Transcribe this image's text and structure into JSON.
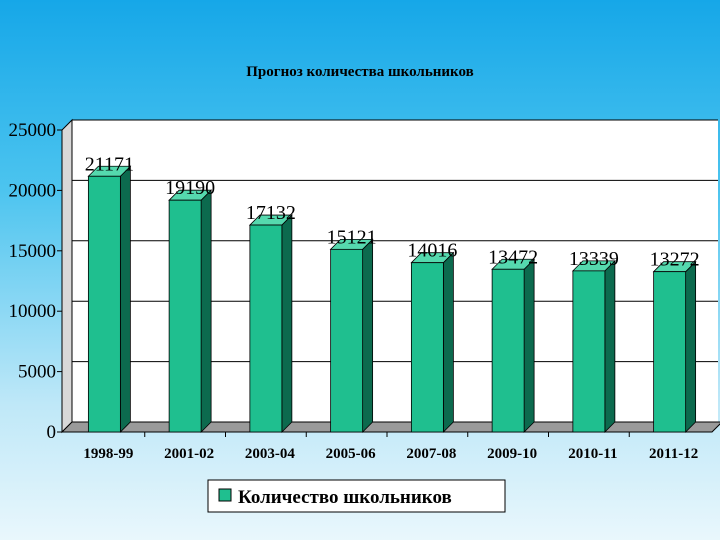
{
  "chart_data": {
    "type": "bar",
    "title": "Прогноз количества школьников",
    "categories": [
      "1998-99",
      "2001-02",
      "2003-04",
      "2005-06",
      "2007-08",
      "2009-10",
      "2010-11",
      "2011-12"
    ],
    "series": [
      {
        "name": "Количество школьников",
        "values": [
          21171,
          19190,
          17132,
          15121,
          14016,
          13472,
          13339,
          13272
        ]
      }
    ],
    "yticks": [
      0,
      5000,
      10000,
      15000,
      20000,
      25000
    ],
    "ylim": [
      0,
      25000
    ],
    "data_labels": true,
    "three_d": true,
    "grid": true,
    "legend_position": "bottom",
    "colors": {
      "bar_front": "#1fbf8f",
      "bar_side": "#0c6a4e",
      "bar_top": "#55d9ae",
      "plot_bg": "#ffffff",
      "floor": "#9a9a9a",
      "page_bg": "#16a7e8"
    }
  }
}
